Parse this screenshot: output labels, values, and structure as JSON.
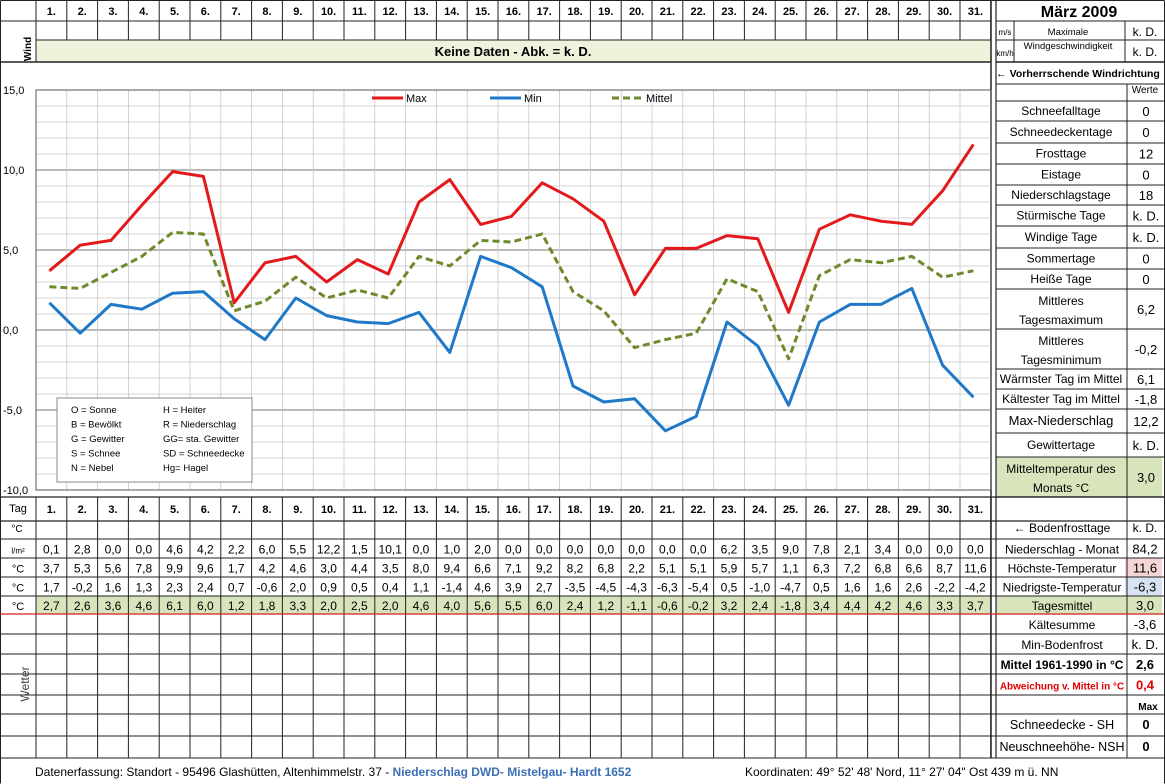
{
  "header": {
    "days": [
      "1.",
      "2.",
      "3.",
      "4.",
      "5.",
      "6.",
      "7.",
      "8.",
      "9.",
      "10.",
      "11.",
      "12.",
      "13.",
      "14.",
      "15.",
      "16.",
      "17.",
      "18.",
      "19.",
      "20.",
      "21.",
      "22.",
      "23.",
      "24.",
      "25.",
      "26.",
      "27.",
      "28.",
      "29.",
      "30.",
      "31."
    ],
    "month_title": "März 2009"
  },
  "wind": {
    "label": "Wind",
    "no_data_text": "Keine Daten - Abk. = k. D.",
    "unit_ms": "m/s",
    "unit_kmh": "km/h",
    "max_label": "Maximale Windgeschwindigkeit",
    "max_ms": "k. D.",
    "max_kmh": "k. D.",
    "direction_label": "← Vorherrschende Windrichtung"
  },
  "chart_data": {
    "type": "line",
    "categories": [
      1,
      2,
      3,
      4,
      5,
      6,
      7,
      8,
      9,
      10,
      11,
      12,
      13,
      14,
      15,
      16,
      17,
      18,
      19,
      20,
      21,
      22,
      23,
      24,
      25,
      26,
      27,
      28,
      29,
      30,
      31
    ],
    "ylim": [
      -10,
      15
    ],
    "yticks": [
      "15,0",
      "10,0",
      "5,0",
      "0,0",
      "-5,0",
      "-10,0"
    ],
    "grid": true,
    "legend_position": "top",
    "series": [
      {
        "name": "Max",
        "color": "#e31a1c",
        "style": "solid",
        "values": [
          3.7,
          5.3,
          5.6,
          7.8,
          9.9,
          9.6,
          1.7,
          4.2,
          4.6,
          3.0,
          4.4,
          3.5,
          8.0,
          9.4,
          6.6,
          7.1,
          9.2,
          8.2,
          6.8,
          2.2,
          5.1,
          5.1,
          5.9,
          5.7,
          1.1,
          6.3,
          7.2,
          6.8,
          6.6,
          8.7,
          11.6
        ]
      },
      {
        "name": "Min",
        "color": "#1f78c8",
        "style": "solid",
        "values": [
          1.7,
          -0.2,
          1.6,
          1.3,
          2.3,
          2.4,
          0.7,
          -0.6,
          2.0,
          0.9,
          0.5,
          0.4,
          1.1,
          -1.4,
          4.6,
          3.9,
          2.7,
          -3.5,
          -4.5,
          -4.3,
          -6.3,
          -5.4,
          0.5,
          -1.0,
          -4.7,
          0.5,
          1.6,
          1.6,
          2.6,
          -2.2,
          -4.2
        ]
      },
      {
        "name": "Mittel",
        "color": "#6e8a2c",
        "style": "dashed",
        "values": [
          2.7,
          2.6,
          3.6,
          4.6,
          6.1,
          6.0,
          1.2,
          1.8,
          3.3,
          2.0,
          2.5,
          2.0,
          4.6,
          4.0,
          5.6,
          5.5,
          6.0,
          2.4,
          1.2,
          -1.1,
          -0.6,
          -0.2,
          3.2,
          2.4,
          -1.8,
          3.4,
          4.4,
          4.2,
          4.6,
          3.3,
          3.7
        ]
      }
    ]
  },
  "weather_key": [
    [
      "O = Sonne",
      "H = Heiter"
    ],
    [
      "B = Bewölkt",
      "R = Niederschlag"
    ],
    [
      "G = Gewitter",
      "GG= sta. Gewitter"
    ],
    [
      "S = Schnee",
      "SD = Schneedecke"
    ],
    [
      "N = Nebel",
      "Hg= Hagel"
    ]
  ],
  "stats": {
    "header": "Werte",
    "rows": [
      {
        "label": "Schneefalltage",
        "value": "0"
      },
      {
        "label": "Schneedeckentage",
        "value": "0"
      },
      {
        "label": "Frosttage",
        "value": "12"
      },
      {
        "label": "Eistage",
        "value": "0"
      },
      {
        "label": "Niederschlagstage",
        "value": "18"
      },
      {
        "label": "Stürmische Tage",
        "value": "k. D."
      },
      {
        "label": "Windige Tage",
        "value": "k. D."
      },
      {
        "label": "Sommertage",
        "value": "0"
      },
      {
        "label": "Heiße Tage",
        "value": "0"
      },
      {
        "label": "Mittleres Tagesmaximum",
        "value": "6,2"
      },
      {
        "label": "Mittleres Tagesminimum",
        "value": "-0,2"
      },
      {
        "label": "Wärmster Tag im Mittel",
        "value": "6,1"
      },
      {
        "label": "Kältester Tag im Mittel",
        "value": "-1,8"
      },
      {
        "label": "Max-Niederschlag",
        "value": "12,2"
      },
      {
        "label": "Gewittertage",
        "value": "k. D."
      },
      {
        "label": "Mitteltemperatur des Monats °C",
        "value": "3,0"
      }
    ]
  },
  "table": {
    "tag_label": "Tag",
    "unit_row_label": "°C",
    "bodenfrost_label": "← Bodenfrosttage",
    "bodenfrost_value": "k. D.",
    "rows": [
      {
        "unit": "l/m²",
        "label": "Niederschlag - Monat",
        "total": "84,2",
        "total_bg": "#ffffff",
        "values": [
          "0,1",
          "2,8",
          "0,0",
          "0,0",
          "4,6",
          "4,2",
          "2,2",
          "6,0",
          "5,5",
          "12,2",
          "1,5",
          "10,1",
          "0,0",
          "1,0",
          "2,0",
          "0,0",
          "0,0",
          "0,0",
          "0,0",
          "0,0",
          "0,0",
          "0,0",
          "6,2",
          "3,5",
          "9,0",
          "7,8",
          "2,1",
          "3,4",
          "0,0",
          "0,0",
          "0,0"
        ]
      },
      {
        "unit": "°C",
        "label": "Höchste-Temperatur",
        "total": "11,6",
        "total_bg": "#f5d6d6",
        "values": [
          "3,7",
          "5,3",
          "5,6",
          "7,8",
          "9,9",
          "9,6",
          "1,7",
          "4,2",
          "4,6",
          "3,0",
          "4,4",
          "3,5",
          "8,0",
          "9,4",
          "6,6",
          "7,1",
          "9,2",
          "8,2",
          "6,8",
          "2,2",
          "5,1",
          "5,1",
          "5,9",
          "5,7",
          "1,1",
          "6,3",
          "7,2",
          "6,8",
          "6,6",
          "8,7",
          "11,6"
        ]
      },
      {
        "unit": "°C",
        "label": "Niedrigste-Temperatur",
        "total": "-6,3",
        "total_bg": "#d7e3f3",
        "values": [
          "1,7",
          "-0,2",
          "1,6",
          "1,3",
          "2,3",
          "2,4",
          "0,7",
          "-0,6",
          "2,0",
          "0,9",
          "0,5",
          "0,4",
          "1,1",
          "-1,4",
          "4,6",
          "3,9",
          "2,7",
          "-3,5",
          "-4,5",
          "-4,3",
          "-6,3",
          "-5,4",
          "0,5",
          "-1,0",
          "-4,7",
          "0,5",
          "1,6",
          "1,6",
          "2,6",
          "-2,2",
          "-4,2"
        ]
      },
      {
        "unit": "°C",
        "label": "Tagesmittel",
        "total": "3,0",
        "total_bg": "#d8e4bc",
        "values": [
          "2,7",
          "2,6",
          "3,6",
          "4,6",
          "6,1",
          "6,0",
          "1,2",
          "1,8",
          "3,3",
          "2,0",
          "2,5",
          "2,0",
          "4,6",
          "4,0",
          "5,6",
          "5,5",
          "6,0",
          "2,4",
          "1,2",
          "-1,1",
          "-0,6",
          "-0,2",
          "3,2",
          "2,4",
          "-1,8",
          "3,4",
          "4,4",
          "4,2",
          "4,6",
          "3,3",
          "3,7"
        ]
      }
    ]
  },
  "weather_section": {
    "label": "Wetter",
    "max_label": "Max",
    "summary": [
      {
        "label": "Kältesumme",
        "value": "-3,6"
      },
      {
        "label": "Min-Bodenfrost",
        "value": "k. D."
      },
      {
        "label": "Mittel 1961-1990 in °C",
        "value": "2,6"
      },
      {
        "label": "Abweichung v. Mittel in °C",
        "value": "0,4"
      }
    ],
    "snow": [
      {
        "label": "Schneedecke -  SH",
        "value": "0"
      },
      {
        "label": "Neuschneehöhe- NSH",
        "value": "0"
      }
    ]
  },
  "footer": {
    "left": "Datenerfassung:  Standort -  95496  Glashütten, Altenhimmelstr. 37 - ",
    "link": "Niederschlag DWD- Mistelgau- Hardt 1652",
    "right": "Koordinaten:  49° 52' 48' Nord,   11° 27' 04\" Ost   439 m ü. NN"
  }
}
